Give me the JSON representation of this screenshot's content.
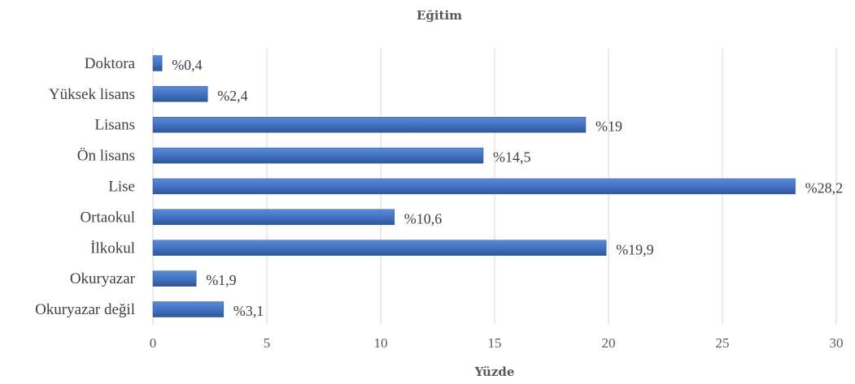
{
  "chart_data": {
    "type": "bar",
    "orientation": "horizontal",
    "title": "Eğitim",
    "xlabel": "Yüzde",
    "ylabel": "",
    "categories": [
      "Doktora",
      "Yüksek lisans",
      "Lisans",
      "Ön lisans",
      "Lise",
      "Ortaokul",
      "İlkokul",
      "Okuryazar",
      "Okuryazar değil"
    ],
    "values": [
      0.4,
      2.4,
      19,
      14.5,
      28.2,
      10.6,
      19.9,
      1.9,
      3.1
    ],
    "data_labels": [
      "%0,4",
      "%2,4",
      "%19",
      "%14,5",
      "%28,2",
      "%10,6",
      "%19,9",
      "%1,9",
      "%3,1"
    ],
    "xlim": [
      0,
      30
    ],
    "xticks": [
      0,
      5,
      10,
      15,
      20,
      25,
      30
    ],
    "grid": true,
    "legend": "none",
    "colors": {
      "bar": "#4472C4",
      "bar_dark": "#2F5597"
    }
  }
}
